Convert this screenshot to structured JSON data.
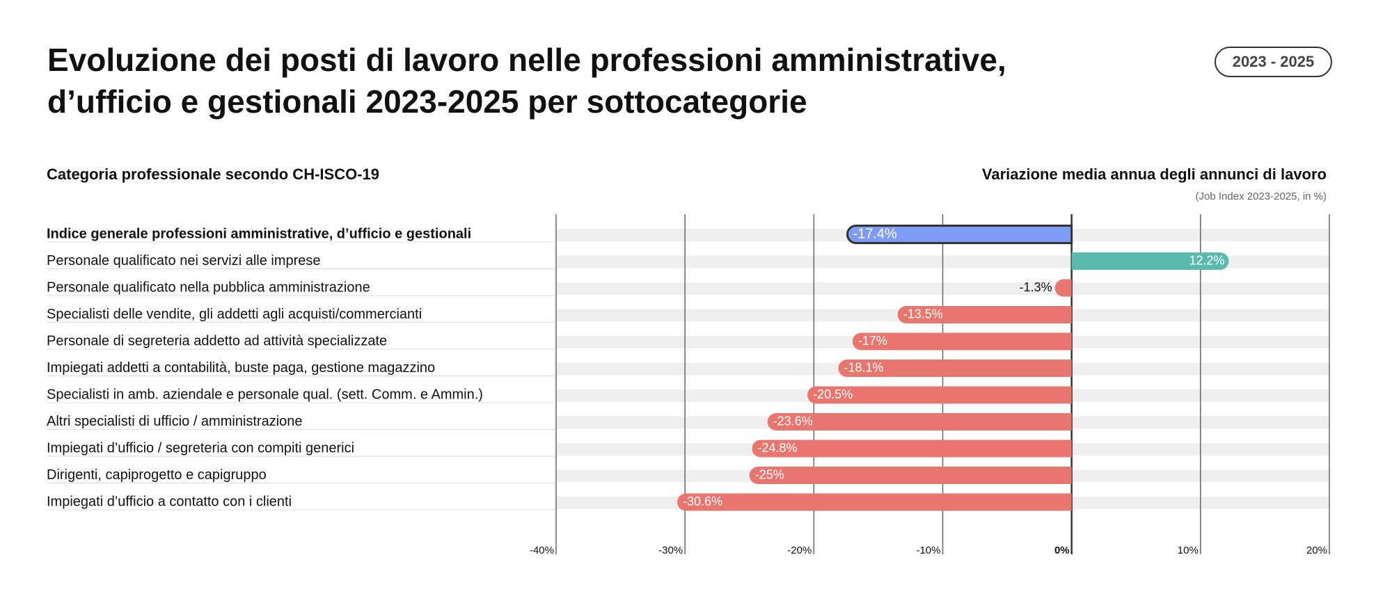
{
  "chart_data": {
    "type": "bar",
    "title": [
      "Evoluzione dei posti di lavoro nelle professioni amministrative,",
      "d’ufficio e gestionali 2023-2025 per sottocategorie"
    ],
    "badge": "2023 - 2025",
    "category_header": "Categoria professionale secondo CH-ISCO-19",
    "value_header": "Variazione media annua degli annunci di lavoro",
    "value_subheader": "(Job Index 2023-2025, in %)",
    "categories": [
      "Indice generale professioni amministrative, d’ufficio e gestionali",
      "Personale qualificato nei servizi alle imprese",
      "Personale qualificato nella pubblica amministrazione",
      "Specialisti delle vendite, gli addetti agli acquisti/commercianti",
      "Personale di segreteria addetto ad attività specializzate",
      "Impiegati addetti a contabilità, buste paga, gestione magazzino",
      "Specialisti in amb. aziendale e personale qual. (sett. Comm. e Ammin.)",
      "Altri specialisti di ufficio / amministrazione",
      "Impiegati d’ufficio / segreteria con compiti generici",
      "Dirigenti, capiprogetto e capigruppo",
      "Impiegati d’ufficio a contatto con i clienti"
    ],
    "values": [
      -17.4,
      12.2,
      -1.3,
      -13.5,
      -17,
      -18.1,
      -20.5,
      -23.6,
      -24.8,
      -25,
      -30.6
    ],
    "value_labels": [
      "-17.4%",
      "12.2%",
      "-1.3%",
      "-13.5%",
      "-17%",
      "-18.1%",
      "-20.5%",
      "-23.6%",
      "-24.8%",
      "-25%",
      "-30.6%"
    ],
    "highlight_color": "#7f9cf5",
    "positive_color": "#5bbab0",
    "negative_color": "#e8766f",
    "xlim": [
      -40,
      20
    ],
    "xticks": [
      {
        "value": -40,
        "label": "-40%"
      },
      {
        "value": -30,
        "label": "-30%"
      },
      {
        "value": -20,
        "label": "-20%"
      },
      {
        "value": -10,
        "label": "-10%"
      },
      {
        "value": 0,
        "label": "0%"
      },
      {
        "value": 10,
        "label": "10%"
      },
      {
        "value": 20,
        "label": "20%"
      }
    ],
    "grid": true
  }
}
